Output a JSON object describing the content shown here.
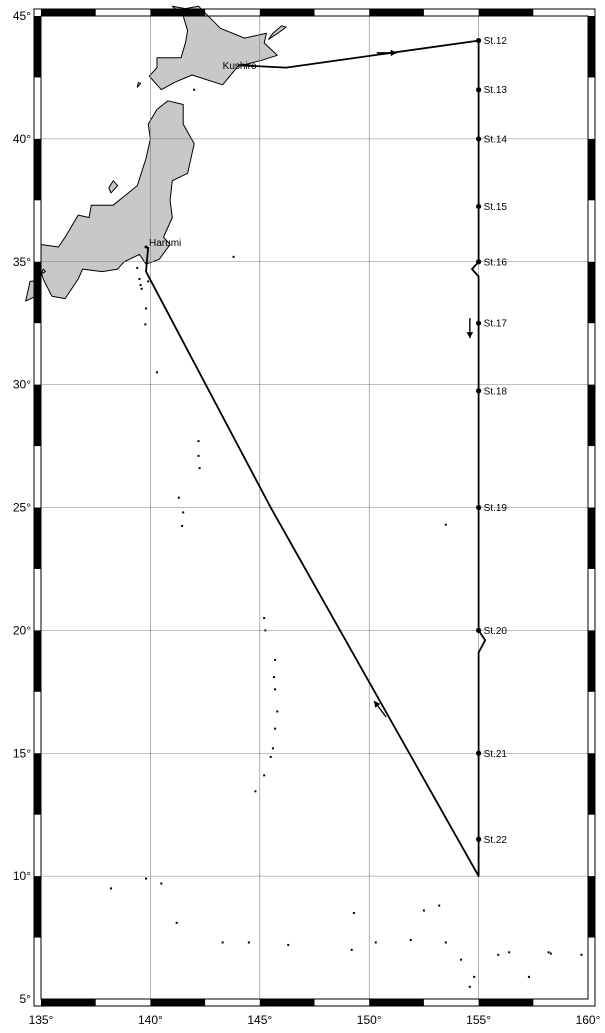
{
  "map": {
    "lon_range": [
      135,
      160
    ],
    "lat_range": [
      5,
      45
    ],
    "grid": true,
    "frame_style": "alternating black/white border",
    "colors": {
      "land": "#c8c8c8",
      "track": "#000000",
      "grid": "#808080"
    }
  },
  "axes": {
    "lon_ticks": [
      {
        "value": 135,
        "label": "135°"
      },
      {
        "value": 140,
        "label": "140°"
      },
      {
        "value": 145,
        "label": "145°"
      },
      {
        "value": 150,
        "label": "150°"
      },
      {
        "value": 155,
        "label": "155°"
      },
      {
        "value": 160,
        "label": "160°"
      }
    ],
    "lat_ticks": [
      {
        "value": 45,
        "label": "45°"
      },
      {
        "value": 40,
        "label": "40°"
      },
      {
        "value": 35,
        "label": "35°"
      },
      {
        "value": 30,
        "label": "30°"
      },
      {
        "value": 25,
        "label": "25°"
      },
      {
        "value": 20,
        "label": "20°"
      },
      {
        "value": 15,
        "label": "15°"
      },
      {
        "value": 10,
        "label": "10°"
      },
      {
        "value": 5,
        "label": "5°"
      }
    ]
  },
  "places": [
    {
      "name": "Kushiro",
      "lon": 144.4,
      "lat": 43.0
    },
    {
      "name": "Harumi",
      "lon": 139.8,
      "lat": 35.6
    }
  ],
  "stations": [
    {
      "name": "St.12",
      "lon": 155.0,
      "lat": 44.0
    },
    {
      "name": "St.13",
      "lon": 155.0,
      "lat": 42.0
    },
    {
      "name": "St.14",
      "lon": 155.0,
      "lat": 40.0
    },
    {
      "name": "St.15",
      "lon": 155.0,
      "lat": 37.25
    },
    {
      "name": "St.16",
      "lon": 155.0,
      "lat": 35.0
    },
    {
      "name": "St.17",
      "lon": 155.0,
      "lat": 32.5
    },
    {
      "name": "St.18",
      "lon": 155.0,
      "lat": 29.75
    },
    {
      "name": "St.19",
      "lon": 155.0,
      "lat": 25.0
    },
    {
      "name": "St.20",
      "lon": 155.0,
      "lat": 20.0
    },
    {
      "name": "St.21",
      "lon": 155.0,
      "lat": 15.0
    },
    {
      "name": "St.22",
      "lon": 155.0,
      "lat": 11.5
    }
  ],
  "cruise_track": [
    [
      144.0,
      43.0
    ],
    [
      146.2,
      42.9
    ],
    [
      155.0,
      44.0
    ],
    [
      155.0,
      35.0
    ],
    [
      154.7,
      34.7
    ],
    [
      155.0,
      34.4
    ],
    [
      155.0,
      20.0
    ],
    [
      155.3,
      19.6
    ],
    [
      155.0,
      19.1
    ],
    [
      155.0,
      10.0
    ],
    [
      145.5,
      25.0
    ],
    [
      139.8,
      34.6
    ],
    [
      139.9,
      35.6
    ]
  ],
  "direction_arrows": [
    {
      "lon": 150.8,
      "lat": 43.5,
      "direction": "east"
    },
    {
      "lon": 154.6,
      "lat": 32.3,
      "direction": "south"
    },
    {
      "lon": 150.5,
      "lat": 16.8,
      "direction": "northwest"
    }
  ],
  "land": {
    "hokkaido": [
      [
        141.0,
        45.4
      ],
      [
        141.6,
        45.3
      ],
      [
        142.2,
        45.4
      ],
      [
        143.2,
        44.5
      ],
      [
        144.3,
        44.1
      ],
      [
        145.3,
        44.3
      ],
      [
        145.2,
        43.9
      ],
      [
        145.8,
        43.4
      ],
      [
        145.1,
        43.2
      ],
      [
        144.0,
        42.95
      ],
      [
        143.3,
        42.2
      ],
      [
        141.9,
        42.6
      ],
      [
        141.1,
        42.3
      ],
      [
        140.5,
        42.0
      ],
      [
        139.95,
        42.55
      ],
      [
        140.3,
        42.9
      ],
      [
        140.3,
        43.3
      ],
      [
        141.4,
        43.3
      ],
      [
        141.6,
        43.9
      ],
      [
        141.7,
        44.4
      ],
      [
        141.5,
        45.0
      ]
    ],
    "honshu": [
      [
        140.8,
        41.55
      ],
      [
        141.5,
        41.4
      ],
      [
        141.5,
        40.6
      ],
      [
        142.0,
        39.8
      ],
      [
        141.7,
        38.6
      ],
      [
        141.0,
        38.3
      ],
      [
        140.9,
        37.5
      ],
      [
        141.0,
        36.8
      ],
      [
        140.6,
        36.0
      ],
      [
        140.9,
        35.7
      ],
      [
        140.4,
        35.1
      ],
      [
        139.8,
        34.9
      ],
      [
        139.5,
        35.3
      ],
      [
        138.8,
        35.0
      ],
      [
        138.5,
        34.7
      ],
      [
        137.8,
        34.6
      ],
      [
        136.9,
        34.7
      ],
      [
        136.7,
        34.3
      ],
      [
        136.1,
        33.5
      ],
      [
        135.5,
        33.6
      ],
      [
        135.1,
        34.3
      ],
      [
        135.0,
        34.6
      ],
      [
        135.0,
        35.7
      ],
      [
        135.8,
        35.6
      ],
      [
        136.1,
        36.0
      ],
      [
        136.7,
        36.9
      ],
      [
        137.2,
        36.8
      ],
      [
        137.3,
        37.3
      ],
      [
        138.3,
        37.3
      ],
      [
        139.4,
        38.1
      ],
      [
        139.8,
        39.2
      ],
      [
        140.0,
        40.0
      ],
      [
        139.9,
        40.6
      ],
      [
        140.3,
        41.2
      ]
    ],
    "shikoku": [
      [
        135.0,
        34.25
      ],
      [
        134.5,
        34.2
      ],
      [
        134.3,
        33.4
      ],
      [
        135.0,
        33.7
      ]
    ],
    "kunashiri": [
      [
        145.4,
        44.05
      ],
      [
        145.9,
        44.35
      ],
      [
        146.2,
        44.55
      ],
      [
        146.0,
        44.6
      ],
      [
        145.6,
        44.3
      ]
    ],
    "sado": [
      [
        138.2,
        37.8
      ],
      [
        138.5,
        38.1
      ],
      [
        138.3,
        38.3
      ],
      [
        138.1,
        38.0
      ]
    ],
    "okushiri": [
      [
        139.4,
        42.1
      ],
      [
        139.55,
        42.25
      ],
      [
        139.45,
        42.3
      ]
    ],
    "kyushu_tip": [
      [
        135.0,
        34.5
      ],
      [
        135.2,
        34.6
      ],
      [
        135.1,
        34.7
      ]
    ]
  },
  "islets": [
    [
      139.4,
      34.75
    ],
    [
      139.5,
      34.3
    ],
    [
      139.55,
      34.05
    ],
    [
      139.6,
      33.9
    ],
    [
      139.8,
      33.1
    ],
    [
      139.77,
      32.45
    ],
    [
      140.3,
      30.5
    ],
    [
      142.2,
      27.7
    ],
    [
      142.2,
      27.1
    ],
    [
      142.25,
      26.6
    ],
    [
      141.3,
      25.4
    ],
    [
      141.5,
      24.8
    ],
    [
      141.45,
      24.25
    ],
    [
      145.2,
      20.5
    ],
    [
      145.25,
      20.0
    ],
    [
      145.7,
      18.8
    ],
    [
      145.65,
      18.1
    ],
    [
      145.7,
      17.6
    ],
    [
      145.8,
      16.7
    ],
    [
      145.7,
      16.0
    ],
    [
      145.6,
      15.2
    ],
    [
      145.5,
      14.85
    ],
    [
      145.2,
      14.1
    ],
    [
      144.8,
      13.45
    ],
    [
      138.2,
      9.5
    ],
    [
      139.8,
      9.9
    ],
    [
      140.5,
      9.7
    ],
    [
      141.2,
      8.1
    ],
    [
      143.3,
      7.3
    ],
    [
      144.5,
      7.3
    ],
    [
      146.3,
      7.2
    ],
    [
      149.3,
      8.5
    ],
    [
      149.2,
      7.0
    ],
    [
      150.3,
      7.3
    ],
    [
      151.9,
      7.4
    ],
    [
      152.5,
      8.6
    ],
    [
      153.2,
      8.8
    ],
    [
      153.5,
      7.3
    ],
    [
      154.2,
      6.6
    ],
    [
      154.6,
      5.5
    ],
    [
      154.8,
      5.9
    ],
    [
      155.9,
      6.8
    ],
    [
      156.4,
      6.9
    ],
    [
      157.3,
      5.9
    ],
    [
      158.2,
      6.9
    ],
    [
      158.3,
      6.85
    ],
    [
      159.7,
      6.8
    ],
    [
      153.5,
      24.3
    ],
    [
      143.8,
      35.2
    ],
    [
      139.9,
      34.2
    ],
    [
      142.0,
      42.0
    ]
  ]
}
